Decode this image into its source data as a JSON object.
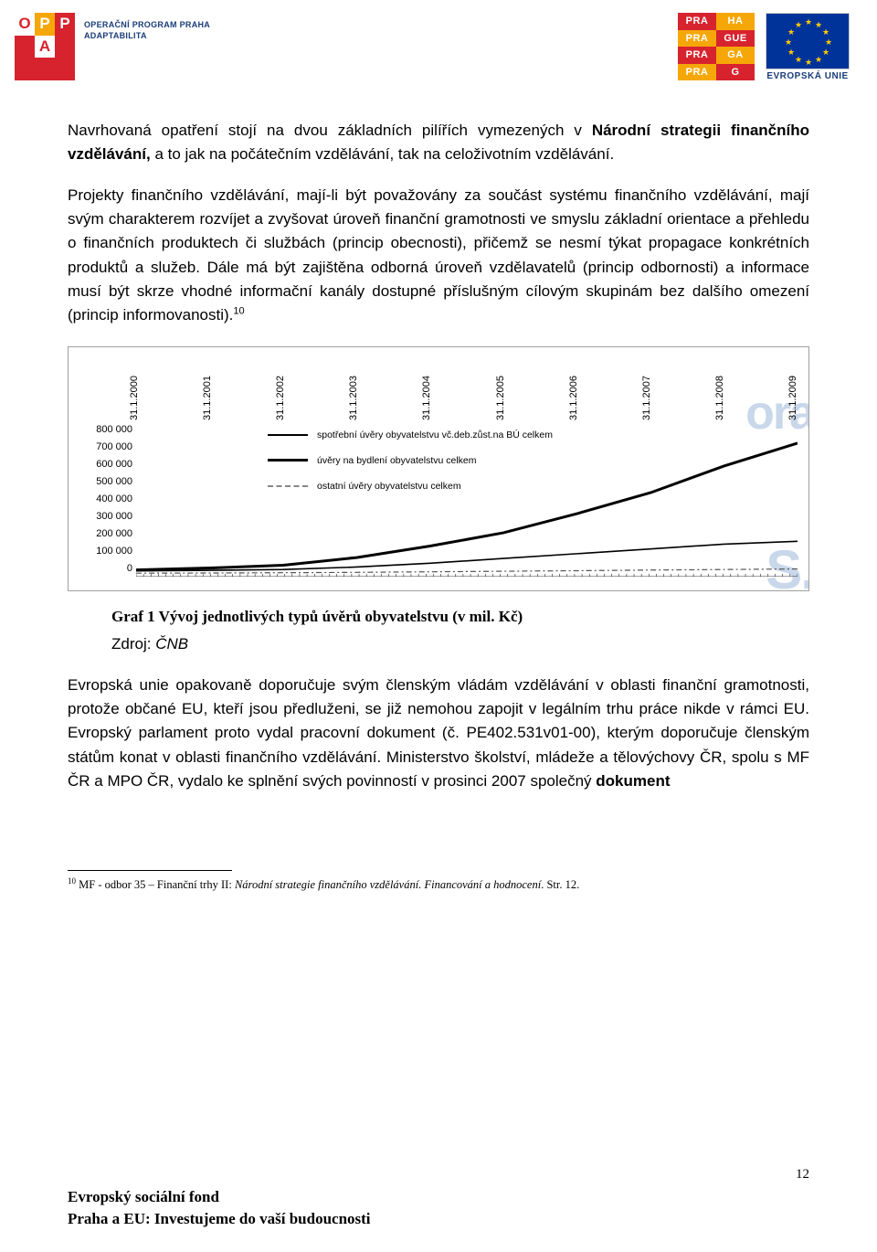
{
  "header": {
    "oppa_grid": [
      [
        {
          "t": "O",
          "bg": "#ffffff",
          "fg": "#d7232e"
        },
        {
          "t": "P",
          "bg": "#f6a708",
          "fg": "#ffffff"
        },
        {
          "t": "P",
          "bg": "#d7232e",
          "fg": "#ffffff"
        }
      ],
      [
        {
          "t": "",
          "bg": "#d7232e",
          "fg": "#fff"
        },
        {
          "t": "A",
          "bg": "#ffffff",
          "fg": "#d7232e"
        },
        {
          "t": "",
          "bg": "#d7232e",
          "fg": "#fff"
        }
      ],
      [
        {
          "t": "",
          "bg": "#d7232e",
          "fg": "#fff"
        },
        {
          "t": "",
          "bg": "#d7232e",
          "fg": "#fff"
        },
        {
          "t": "",
          "bg": "#d7232e",
          "fg": "#fff"
        }
      ]
    ],
    "oppa_text1": "OPERAČNÍ PROGRAM PRAHA",
    "oppa_text2": "ADAPTABILITA",
    "praha_grid": [
      [
        {
          "t": "PRA",
          "bg": "#d7232e",
          "fg": "#fff"
        },
        {
          "t": "HA",
          "bg": "#f6a708",
          "fg": "#fff"
        }
      ],
      [
        {
          "t": "PRA",
          "bg": "#f6a708",
          "fg": "#fff"
        },
        {
          "t": "GUE",
          "bg": "#d7232e",
          "fg": "#fff"
        }
      ],
      [
        {
          "t": "PRA",
          "bg": "#d7232e",
          "fg": "#fff"
        },
        {
          "t": "GA",
          "bg": "#f6a708",
          "fg": "#fff"
        }
      ],
      [
        {
          "t": "PRA",
          "bg": "#f6a708",
          "fg": "#fff"
        },
        {
          "t": "G",
          "bg": "#d7232e",
          "fg": "#fff"
        }
      ]
    ],
    "eu_label": "EVROPSKÁ UNIE"
  },
  "body": {
    "p1_a": "Navrhovaná opatření stojí na dvou základních pilířích vymezených v ",
    "p1_b": "Národní strategii finančního vzdělávání,",
    "p1_c": " a to jak na počátečním vzdělávání, tak na celoživotním vzdělávání.",
    "p2": "Projekty finančního vzdělávání, mají-li být považovány za součást systému finančního vzdělávání, mají svým charakterem rozvíjet a zvyšovat úroveň finanční gramotnosti ve smyslu základní orientace a přehledu o finančních produktech či službách (princip obecnosti), přičemž se nesmí týkat propagace konkrétních produktů a služeb. Dále má být zajištěna odborná úroveň vzdělavatelů (princip odbornosti) a informace musí být skrze vhodné informační kanály dostupné příslušným cílovým skupinám bez dalšího omezení (princip informovanosti).",
    "p2_sup": "10",
    "p3_a": "Evropská unie opakovaně doporučuje svým členským vládám vzdělávání v oblasti finanční gramotnosti, protože občané EU, kteří jsou předluženi, se již nemohou zapojit v legálním trhu práce nikde v rámci EU. Evropský parlament proto vydal pracovní dokument (č. PE402.531v01-00), kterým doporučuje členským státům konat v oblasti finančního vzdělávání. Ministerstvo školství, mládeže a tělovýchovy ČR, spolu s MF ČR a MPO ČR, vydalo ke splnění svých povinností v prosinci 2007 společný ",
    "p3_b": "dokument"
  },
  "chart": {
    "type": "line",
    "x_labels": [
      "31.1.2000",
      "31.1.2001",
      "31.1.2002",
      "31.1.2003",
      "31.1.2004",
      "31.1.2005",
      "31.1.2006",
      "31.1.2007",
      "31.1.2008",
      "31.1.2009"
    ],
    "y_labels": [
      "800 000",
      "700 000",
      "600 000",
      "500 000",
      "400 000",
      "300 000",
      "200 000",
      "100 000",
      "0"
    ],
    "ylim": [
      0,
      800000
    ],
    "legend": [
      {
        "label": "spotřební úvěry obyvatelstvu vč.deb.zůst.na BÚ celkem",
        "style": "solid",
        "width": 1.5,
        "color": "#000000"
      },
      {
        "label": "úvěry na bydlení obyvatelstvu celkem",
        "style": "solid",
        "width": 3,
        "color": "#000000"
      },
      {
        "label": "ostatní úvěry obyvatelstvu celkem",
        "style": "dashdot",
        "width": 1.5,
        "color": "#555555"
      }
    ],
    "series": {
      "spotrebni": [
        30000,
        33000,
        37000,
        50000,
        70000,
        95000,
        120000,
        145000,
        170000,
        185000
      ],
      "bydleni": [
        35000,
        45000,
        60000,
        100000,
        160000,
        230000,
        330000,
        440000,
        580000,
        700000
      ],
      "ostatni": [
        18000,
        19000,
        20000,
        22000,
        25000,
        28000,
        31000,
        34000,
        37000,
        40000
      ]
    },
    "background_color": "#ffffff",
    "watermark1": "ora",
    "watermark2": "S.",
    "caption": "Graf 1 Vývoj jednotlivých typů úvěrů obyvatelstvu (v mil. Kč)",
    "source_prefix": "Zdroj: ",
    "source_italic": "ČNB"
  },
  "footnote": {
    "num": "10",
    "a": " MF - odbor 35 – Finanční trhy II: ",
    "it": "Národní strategie finančního vzdělávání. Financování a hodnocení",
    "b": ". Str. 12."
  },
  "footer": {
    "l1": "Evropský sociální fond",
    "l2": "Praha a EU: Investujeme do vaší budoucnosti"
  },
  "page_number": "12"
}
